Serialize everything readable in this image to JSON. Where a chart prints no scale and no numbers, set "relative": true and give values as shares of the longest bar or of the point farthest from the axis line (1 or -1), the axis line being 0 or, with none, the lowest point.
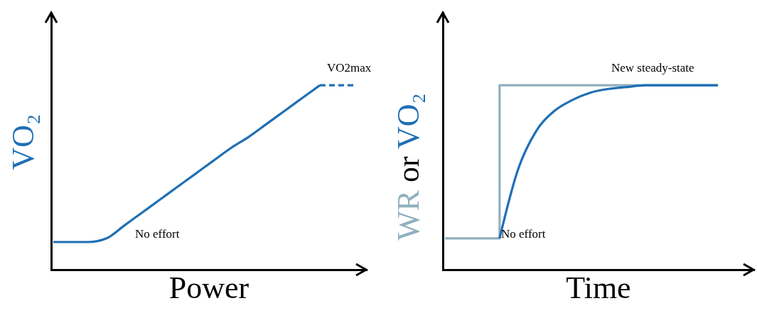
{
  "chart_data": [
    {
      "type": "line",
      "relative": true,
      "xlabel": "Power",
      "ylabel": "VO₂",
      "annotations": [
        "VO2max",
        "No effort"
      ],
      "categories": [
        null,
        null,
        null,
        null,
        null,
        null,
        null,
        null,
        null,
        null,
        null,
        null,
        null,
        null,
        null,
        null,
        null,
        null
      ],
      "series": [
        {
          "color": "#1f6fb5",
          "values": [
            0.15,
            0.15,
            0.15,
            0.17,
            0.24,
            0.31,
            0.38,
            0.45,
            0.52,
            0.59,
            0.66,
            0.72,
            0.79,
            0.86,
            0.93,
            1.0,
            null,
            null
          ]
        },
        {
          "color": "#1f6fb5",
          "line_style": "dashed",
          "values": [
            null,
            null,
            null,
            null,
            null,
            null,
            null,
            null,
            null,
            null,
            null,
            null,
            null,
            null,
            null,
            1.0,
            1.0,
            1.0
          ]
        }
      ]
    },
    {
      "type": "line",
      "relative": true,
      "xlabel": "Time",
      "ylabel": "WR or VO₂",
      "annotations": [
        "New steady-state",
        "No effort"
      ],
      "categories": [
        null,
        null,
        null,
        null,
        null,
        null,
        null,
        null,
        null,
        null,
        null,
        null,
        null,
        null,
        null,
        null
      ],
      "series": [
        {
          "type": "step",
          "color": "#8fb0bf",
          "values": [
            0.17,
            0.17,
            0.17,
            1.0,
            1.0,
            1.0,
            1.0,
            1.0,
            1.0,
            1.0,
            1.0,
            1.0,
            1.0,
            1.0,
            1.0,
            1.0
          ]
        },
        {
          "color": "#1f6fb5",
          "values": [
            null,
            null,
            null,
            0.17,
            0.54,
            0.75,
            0.86,
            0.92,
            0.96,
            0.98,
            0.99,
            1.0,
            1.0,
            1.0,
            1.0,
            1.0
          ]
        }
      ]
    }
  ]
}
